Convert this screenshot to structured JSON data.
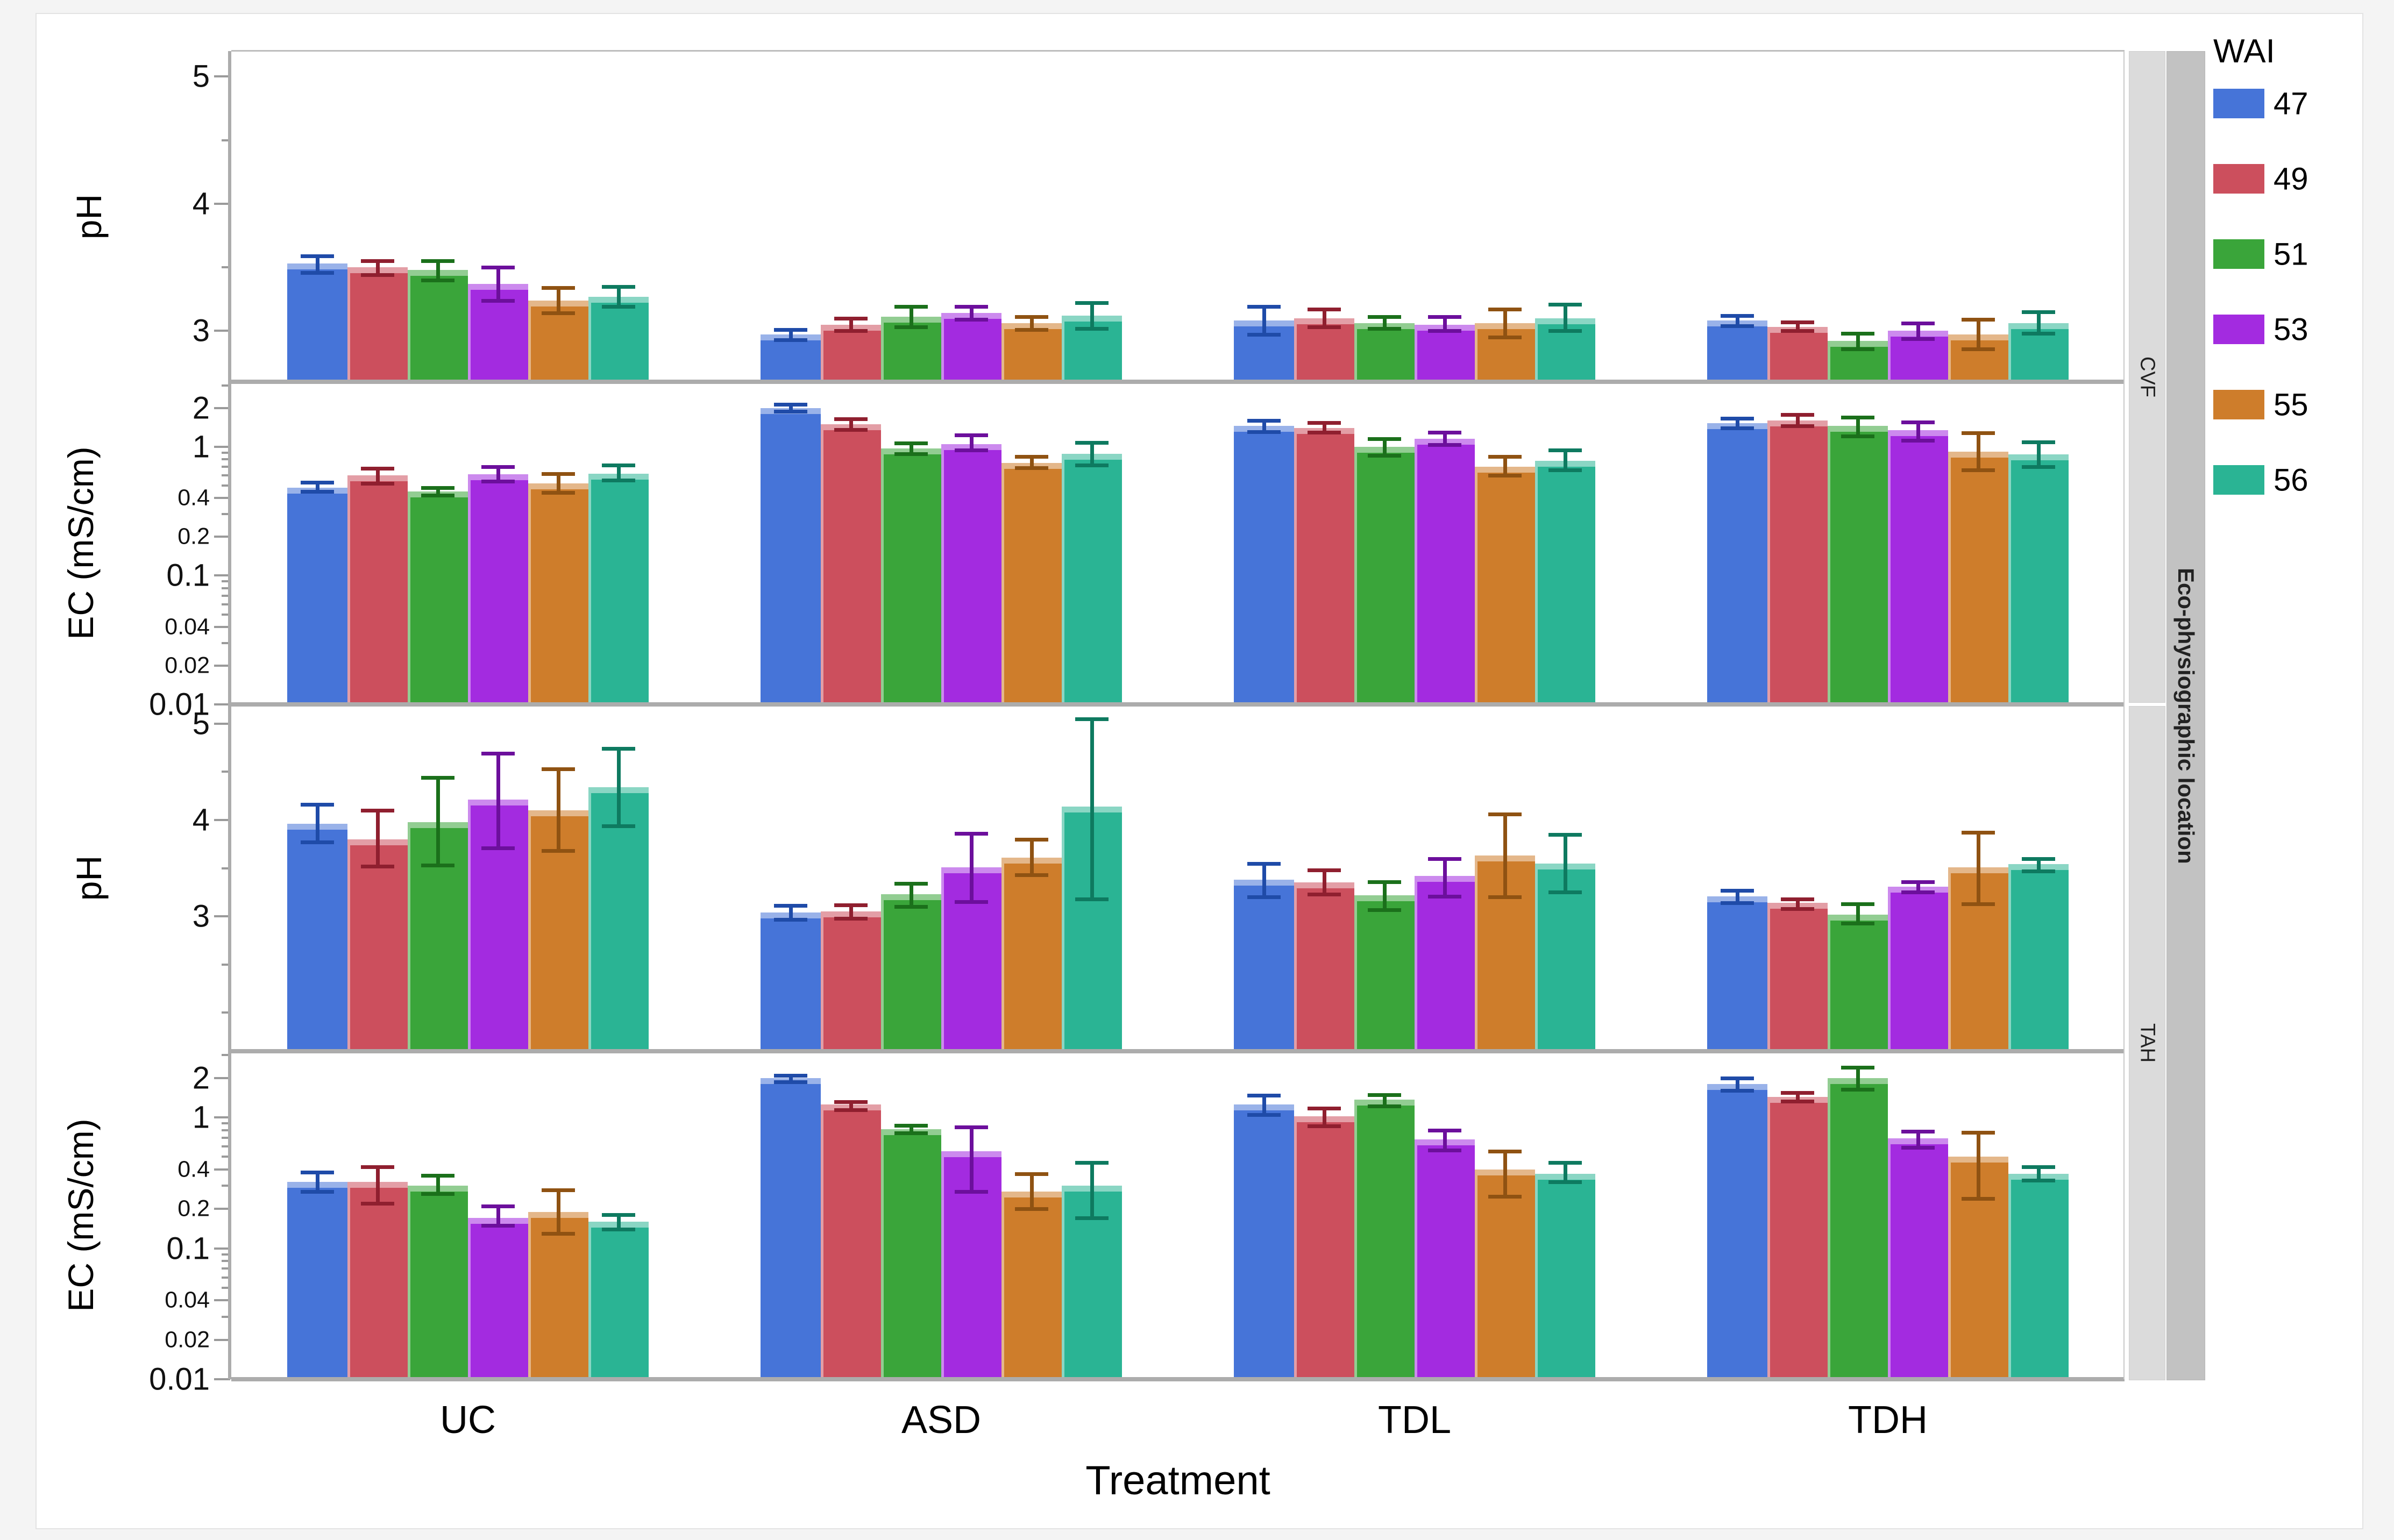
{
  "chart_data": {
    "type": "bar",
    "xlabel": "Treatment",
    "x_categories": [
      "UC",
      "ASD",
      "TDL",
      "TDH"
    ],
    "facet_column_label": "Eco-physiographic location",
    "facet_rows": [
      "CVF",
      "TAH"
    ],
    "legend": {
      "title": "WAI",
      "entries": [
        {
          "label": "47",
          "color": "#4674D8",
          "error_color": "#1f4ba8"
        },
        {
          "label": "49",
          "color": "#CC4F5D",
          "error_color": "#8f1f2f"
        },
        {
          "label": "51",
          "color": "#3AA53A",
          "error_color": "#1b701b"
        },
        {
          "label": "53",
          "color": "#A32BE0",
          "error_color": "#6c0f9c"
        },
        {
          "label": "55",
          "color": "#CE7D2B",
          "error_color": "#8f5212"
        },
        {
          "label": "56",
          "color": "#2AB494",
          "error_color": "#0e7a60"
        }
      ]
    },
    "note": "values are [mean, lower_error, upper_error]; EC axes are log10 scaled",
    "panels": [
      {
        "facet": "CVF",
        "measure": "pH",
        "ylabel": "pH",
        "axis": {
          "type": "linear",
          "min": 2.6,
          "max": 5.2,
          "ticks": [
            {
              "v": 5,
              "label": "5",
              "lg": true
            },
            {
              "v": 4,
              "label": "4",
              "lg": true
            },
            {
              "v": 3,
              "label": "3",
              "lg": true
            }
          ],
          "minor": [
            4.5,
            3.5
          ]
        },
        "series": {
          "UC": [
            [
              3.53,
              3.46,
              3.59
            ],
            [
              3.5,
              3.44,
              3.55
            ],
            [
              3.48,
              3.4,
              3.55
            ],
            [
              3.37,
              3.24,
              3.5
            ],
            [
              3.24,
              3.14,
              3.34
            ],
            [
              3.27,
              3.19,
              3.35
            ]
          ],
          "ASD": [
            [
              2.97,
              2.93,
              3.01
            ],
            [
              3.05,
              3.0,
              3.1
            ],
            [
              3.11,
              3.03,
              3.19
            ],
            [
              3.14,
              3.09,
              3.19
            ],
            [
              3.06,
              3.01,
              3.11
            ],
            [
              3.12,
              3.02,
              3.22
            ]
          ],
          "TDL": [
            [
              3.08,
              2.97,
              3.19
            ],
            [
              3.1,
              3.03,
              3.17
            ],
            [
              3.06,
              3.02,
              3.11
            ],
            [
              3.05,
              3.0,
              3.11
            ],
            [
              3.06,
              2.95,
              3.17
            ],
            [
              3.1,
              3.0,
              3.21
            ]
          ],
          "TDH": [
            [
              3.08,
              3.04,
              3.12
            ],
            [
              3.03,
              3.0,
              3.07
            ],
            [
              2.92,
              2.86,
              2.98
            ],
            [
              3.0,
              2.94,
              3.06
            ],
            [
              2.97,
              2.86,
              3.09
            ],
            [
              3.06,
              2.98,
              3.15
            ]
          ]
        }
      },
      {
        "facet": "CVF",
        "measure": "EC",
        "ylabel": "EC (mS/cm)",
        "axis": {
          "type": "log",
          "min": 0.01,
          "max": 3.2,
          "ticks": [
            {
              "v": 2,
              "label": "2",
              "lg": true
            },
            {
              "v": 1,
              "label": "1",
              "lg": true
            },
            {
              "v": 0.4,
              "label": "0.4"
            },
            {
              "v": 0.2,
              "label": "0.2"
            },
            {
              "v": 0.1,
              "label": "0.1",
              "lg": true
            },
            {
              "v": 0.04,
              "label": "0.04"
            },
            {
              "v": 0.02,
              "label": "0.02"
            },
            {
              "v": 0.01,
              "label": "0.01",
              "lg": true
            }
          ],
          "minor": [
            3,
            0.9,
            0.8,
            0.7,
            0.6,
            0.5,
            0.3,
            0.09,
            0.08,
            0.07,
            0.06,
            0.05,
            0.03
          ]
        },
        "series": {
          "UC": [
            [
              0.48,
              0.45,
              0.53
            ],
            [
              0.6,
              0.52,
              0.68
            ],
            [
              0.45,
              0.42,
              0.48
            ],
            [
              0.61,
              0.54,
              0.7
            ],
            [
              0.52,
              0.44,
              0.62
            ],
            [
              0.62,
              0.55,
              0.72
            ]
          ],
          "ASD": [
            [
              2.0,
              1.88,
              2.14
            ],
            [
              1.5,
              1.36,
              1.65
            ],
            [
              0.97,
              0.88,
              1.07
            ],
            [
              1.05,
              0.94,
              1.24
            ],
            [
              0.75,
              0.69,
              0.84
            ],
            [
              0.88,
              0.72,
              1.08
            ]
          ],
          "TDL": [
            [
              1.45,
              1.31,
              1.6
            ],
            [
              1.4,
              1.29,
              1.54
            ],
            [
              1.0,
              0.86,
              1.15
            ],
            [
              1.15,
              1.04,
              1.29
            ],
            [
              0.7,
              0.6,
              0.84
            ],
            [
              0.78,
              0.66,
              0.94
            ]
          ],
          "TDH": [
            [
              1.52,
              1.4,
              1.66
            ],
            [
              1.6,
              1.46,
              1.78
            ],
            [
              1.45,
              1.21,
              1.7
            ],
            [
              1.35,
              1.12,
              1.56
            ],
            [
              0.92,
              0.66,
              1.28
            ],
            [
              0.87,
              0.7,
              1.09
            ]
          ]
        }
      },
      {
        "facet": "TAH",
        "measure": "pH",
        "ylabel": "pH",
        "axis": {
          "type": "linear",
          "min": 1.6,
          "max": 5.2,
          "ticks": [
            {
              "v": 5,
              "label": "5",
              "lg": true
            },
            {
              "v": 4,
              "label": "4",
              "lg": true
            },
            {
              "v": 3,
              "label": "3",
              "lg": true
            }
          ],
          "minor": [
            4.5,
            3.5,
            2.5,
            2.0
          ]
        },
        "series": {
          "UC": [
            [
              3.96,
              3.77,
              4.16
            ],
            [
              3.8,
              3.52,
              4.1
            ],
            [
              3.98,
              3.53,
              4.44
            ],
            [
              4.21,
              3.71,
              4.69
            ],
            [
              4.1,
              3.68,
              4.53
            ],
            [
              4.34,
              3.94,
              4.74
            ]
          ],
          "ASD": [
            [
              3.04,
              2.97,
              3.11
            ],
            [
              3.05,
              2.98,
              3.12
            ],
            [
              3.23,
              3.1,
              3.34
            ],
            [
              3.51,
              3.15,
              3.86
            ],
            [
              3.61,
              3.43,
              3.8
            ],
            [
              4.14,
              3.18,
              5.05
            ]
          ],
          "TDL": [
            [
              3.38,
              3.2,
              3.55
            ],
            [
              3.35,
              3.23,
              3.48
            ],
            [
              3.22,
              3.07,
              3.36
            ],
            [
              3.42,
              3.21,
              3.6
            ],
            [
              3.63,
              3.2,
              4.06
            ],
            [
              3.55,
              3.25,
              3.85
            ]
          ],
          "TDH": [
            [
              3.21,
              3.14,
              3.27
            ],
            [
              3.14,
              3.08,
              3.18
            ],
            [
              3.02,
              2.93,
              3.13
            ],
            [
              3.31,
              3.25,
              3.36
            ],
            [
              3.51,
              3.13,
              3.87
            ],
            [
              3.54,
              3.47,
              3.6
            ]
          ]
        }
      },
      {
        "facet": "TAH",
        "measure": "EC",
        "ylabel": "EC (mS/cm)",
        "axis": {
          "type": "log",
          "min": 0.01,
          "max": 3.2,
          "ticks": [
            {
              "v": 2,
              "label": "2",
              "lg": true
            },
            {
              "v": 1,
              "label": "1",
              "lg": true
            },
            {
              "v": 0.4,
              "label": "0.4"
            },
            {
              "v": 0.2,
              "label": "0.2"
            },
            {
              "v": 0.1,
              "label": "0.1",
              "lg": true
            },
            {
              "v": 0.04,
              "label": "0.04"
            },
            {
              "v": 0.02,
              "label": "0.02"
            },
            {
              "v": 0.01,
              "label": "0.01",
              "lg": true
            }
          ],
          "minor": [
            3,
            0.9,
            0.8,
            0.7,
            0.6,
            0.5,
            0.3,
            0.09,
            0.08,
            0.07,
            0.06,
            0.05,
            0.03
          ]
        },
        "series": {
          "UC": [
            [
              0.32,
              0.27,
              0.38
            ],
            [
              0.32,
              0.22,
              0.42
            ],
            [
              0.3,
              0.26,
              0.36
            ],
            [
              0.17,
              0.15,
              0.21
            ],
            [
              0.19,
              0.13,
              0.28
            ],
            [
              0.16,
              0.14,
              0.18
            ]
          ],
          "ASD": [
            [
              2.0,
              1.86,
              2.1
            ],
            [
              1.25,
              1.14,
              1.32
            ],
            [
              0.81,
              0.76,
              0.87
            ],
            [
              0.55,
              0.27,
              0.84
            ],
            [
              0.27,
              0.2,
              0.37
            ],
            [
              0.3,
              0.17,
              0.45
            ]
          ],
          "TDL": [
            [
              1.25,
              1.05,
              1.48
            ],
            [
              1.02,
              0.86,
              1.18
            ],
            [
              1.36,
              1.22,
              1.49
            ],
            [
              0.68,
              0.56,
              0.8
            ],
            [
              0.4,
              0.25,
              0.55
            ],
            [
              0.37,
              0.32,
              0.45
            ]
          ],
          "TDH": [
            [
              1.8,
              1.6,
              2.0
            ],
            [
              1.43,
              1.33,
              1.54
            ],
            [
              2.0,
              1.64,
              2.4
            ],
            [
              0.69,
              0.59,
              0.78
            ],
            [
              0.5,
              0.24,
              0.77
            ],
            [
              0.37,
              0.33,
              0.42
            ]
          ]
        }
      }
    ]
  }
}
